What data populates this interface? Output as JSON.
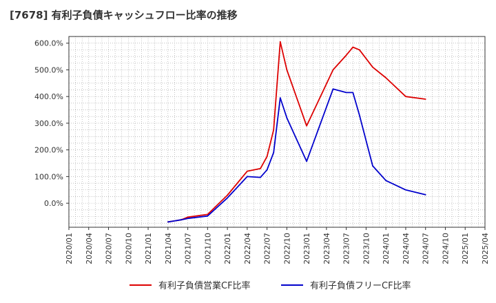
{
  "chart_data": {
    "type": "line",
    "title": "[7678]  有利子負債キャッシュフロー比率の推移",
    "xlabel": "",
    "ylabel": "",
    "ylim": [
      -90,
      625
    ],
    "y_ticks": [
      "0.0%",
      "100.0%",
      "200.0%",
      "300.0%",
      "400.0%",
      "500.0%",
      "600.0%"
    ],
    "y_tick_values": [
      0,
      100,
      200,
      300,
      400,
      500,
      600
    ],
    "x_ticks": [
      "2020/01",
      "2020/04",
      "2020/07",
      "2020/10",
      "2021/01",
      "2021/04",
      "2021/07",
      "2021/10",
      "2022/01",
      "2022/04",
      "2022/07",
      "2022/10",
      "2023/01",
      "2023/04",
      "2023/07",
      "2023/10",
      "2024/01",
      "2024/04",
      "2024/07",
      "2024/10",
      "2025/01",
      "2025/04"
    ],
    "x_range_months": [
      0,
      63
    ],
    "grid": true,
    "legend_position": "bottom",
    "series": [
      {
        "name": "有利子負債営業CF比率",
        "color": "#dd0000",
        "x": [
          15,
          17,
          18,
          21,
          24,
          27,
          29,
          30,
          31,
          32,
          33,
          36,
          40,
          42,
          43,
          44,
          46,
          48,
          51,
          54
        ],
        "values": [
          -70,
          -62,
          -52,
          -42,
          30,
          120,
          130,
          175,
          275,
          605,
          500,
          290,
          500,
          555,
          585,
          575,
          510,
          470,
          400,
          390
        ]
      },
      {
        "name": "有利子負債フリーCF比率",
        "color": "#0000cc",
        "x": [
          15,
          17,
          18,
          21,
          24,
          27,
          29,
          30,
          31,
          32,
          33,
          36,
          40,
          42,
          43,
          44,
          46,
          48,
          51,
          54
        ],
        "values": [
          -70,
          -62,
          -57,
          -48,
          20,
          100,
          97,
          125,
          190,
          395,
          320,
          157,
          428,
          415,
          415,
          330,
          140,
          85,
          50,
          32
        ]
      }
    ]
  }
}
